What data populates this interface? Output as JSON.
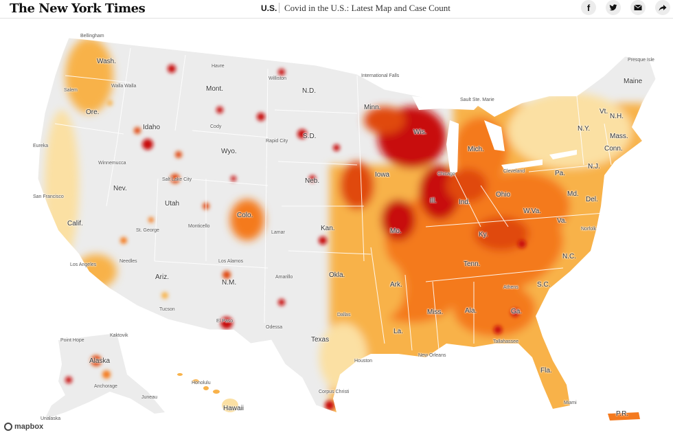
{
  "header": {
    "logo": "The New York Times",
    "section": "U.S.",
    "title": "Covid in the U.S.: Latest Map and Case Count",
    "share_buttons": [
      {
        "name": "facebook-icon",
        "glyph": "f"
      },
      {
        "name": "twitter-icon",
        "glyph": "🐦"
      },
      {
        "name": "email-icon",
        "glyph": "✉"
      },
      {
        "name": "share-icon",
        "glyph": "➦"
      }
    ]
  },
  "map": {
    "colors": {
      "light": "#fbe0a3",
      "medium": "#f8b24a",
      "orange": "#f47a1f",
      "dark_orange": "#e04a10",
      "red": "#c8110e",
      "land": "#ececec"
    },
    "state_labels": {
      "wash": "Wash.",
      "ore": "Ore.",
      "calif": "Calif.",
      "nev": "Nev.",
      "idaho": "Idaho",
      "mont": "Mont.",
      "wyo": "Wyo.",
      "utah": "Utah",
      "ariz": "Ariz.",
      "colo": "Colo.",
      "nm": "N.M.",
      "nd": "N.D.",
      "sd": "S.D.",
      "neb": "Neb.",
      "kan": "Kan.",
      "okla": "Okla.",
      "texas": "Texas",
      "minn": "Minn.",
      "iowa": "Iowa",
      "mo": "Mo.",
      "ark": "Ark.",
      "la": "La.",
      "wis": "Wis.",
      "ill": "Ill.",
      "mich": "Mich.",
      "ind": "Ind.",
      "ohio": "Ohio",
      "ky": "Ky.",
      "tenn": "Tenn.",
      "miss": "Miss.",
      "ala": "Ala.",
      "ga": "Ga.",
      "fla": "Fla.",
      "sc": "S.C.",
      "nc": "N.C.",
      "va": "Va.",
      "wva": "W.Va.",
      "pa": "Pa.",
      "ny": "N.Y.",
      "vt": "Vt.",
      "nh": "N.H.",
      "maine": "Maine",
      "mass": "Mass.",
      "conn": "Conn.",
      "nj": "N.J.",
      "md": "Md.",
      "del": "Del.",
      "alaska": "Alaska",
      "hawaii": "Hawaii",
      "pr": "P.R."
    },
    "city_labels": {
      "bellingham": "Bellingham",
      "salem": "Salem",
      "walla_walla": "Walla Walla",
      "havre": "Havre",
      "williston": "Williston",
      "international_falls": "International Falls",
      "sault_ste_marie": "Sault Ste. Marie",
      "presque_isle": "Presque Isle",
      "eureka": "Eureka",
      "winnemucca": "Winnemucca",
      "san_francisco": "San Francisco",
      "los_angeles": "Los Angeles",
      "needles": "Needles",
      "st_george": "St. George",
      "monticello": "Monticello",
      "los_alamos": "Los Alamos",
      "tucson": "Tucson",
      "el_paso": "El Paso",
      "odessa": "Odessa",
      "dallas": "Dallas",
      "houston": "Houston",
      "corpus_christi": "Corpus Christi",
      "new_orleans": "New Orleans",
      "tallahassee": "Tallahassee",
      "miami": "Miami",
      "cleveland": "Cleveland",
      "chicago": "Chicago",
      "norfolk": "Norfolk",
      "athens": "Athens",
      "rapid_city": "Rapid City",
      "cody": "Cody",
      "salt_lake_city": "Salt Lake City",
      "lamar": "Lamar",
      "amarillo": "Amarillo",
      "point_hope": "Point Hope",
      "kaktovik": "Kaktovik",
      "anchorage": "Anchorage",
      "juneau": "Juneau",
      "unalaska": "Unalaska",
      "honolulu": "Honolulu"
    },
    "attribution": "mapbox"
  }
}
